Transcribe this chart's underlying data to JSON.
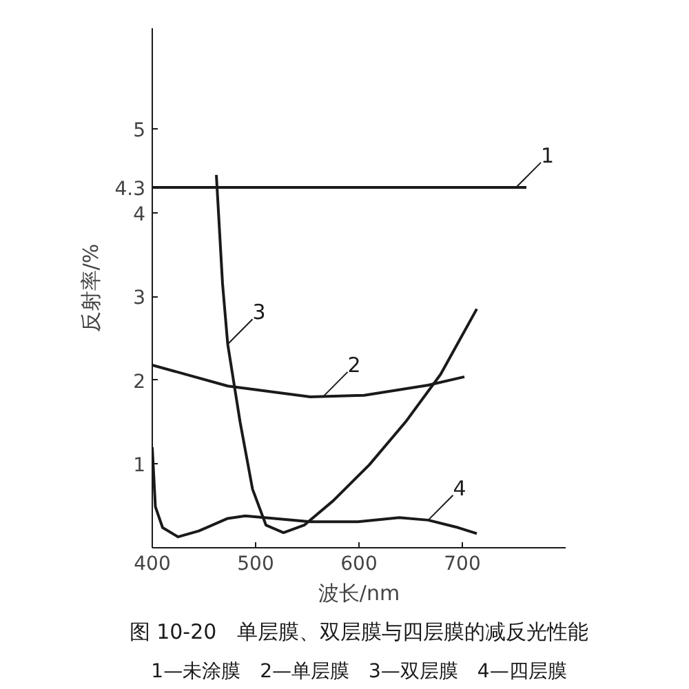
{
  "chart_data": {
    "type": "line",
    "title": "图 10-20　单层膜、双层膜与四层膜的减反光性能",
    "xlabel": "波长/nm",
    "ylabel": "反射率/%",
    "annotations": [
      {
        "text": "1",
        "x": 752,
        "y": 4.3
      },
      {
        "text": "2",
        "x": 565,
        "y": 1.8
      },
      {
        "text": "3",
        "x": 473,
        "y": 2.43
      },
      {
        "text": "4",
        "x": 667,
        "y": 0.33
      },
      "1—未涂膜　2—单层膜　3—双层膜　4—四层膜"
    ],
    "series": [
      {
        "color": "#1a1a1a",
        "x": [
          400,
          762
        ],
        "values": [
          4.3,
          4.3
        ]
      },
      {
        "color": "#1a1a1a",
        "x": [
          400,
          473,
          553,
          605,
          667,
          702
        ],
        "values": [
          2.18,
          1.93,
          1.8,
          1.82,
          1.94,
          2.04
        ]
      },
      {
        "color": "#1a1a1a",
        "x": [
          462,
          468,
          473,
          485,
          497,
          510,
          527,
          547,
          575,
          610,
          645,
          679,
          714
        ],
        "values": [
          4.45,
          3.15,
          2.43,
          1.5,
          0.7,
          0.27,
          0.18,
          0.27,
          0.56,
          0.99,
          1.5,
          2.07,
          2.85
        ]
      },
      {
        "color": "#1a1a1a",
        "x": [
          400,
          403,
          410,
          425,
          445,
          473,
          490,
          518,
          553,
          599,
          639,
          667,
          696,
          714
        ],
        "values": [
          1.2,
          0.49,
          0.24,
          0.13,
          0.2,
          0.35,
          0.38,
          0.35,
          0.31,
          0.31,
          0.36,
          0.33,
          0.24,
          0.17
        ]
      }
    ],
    "xlim": [
      400,
      800
    ],
    "ylim": [
      0,
      6.2
    ],
    "xticks": [
      400,
      500,
      600,
      700
    ],
    "yticks": [
      1,
      2,
      3,
      4,
      4.3,
      5
    ],
    "grid": false,
    "marker": "none",
    "line_style": "solid"
  }
}
